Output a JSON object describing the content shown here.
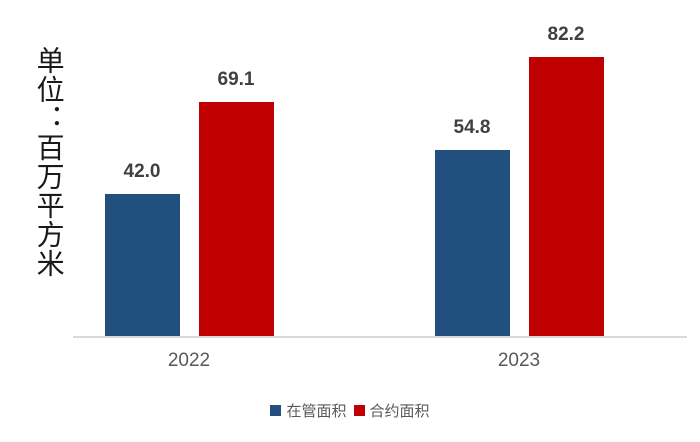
{
  "chart_data": {
    "type": "bar",
    "title": "",
    "unit_label": "单位：百万平方米",
    "categories": [
      "2022",
      "2023"
    ],
    "series": [
      {
        "key": "managed-area",
        "name": "在管面积",
        "color": "#21507e",
        "values": [
          42.0,
          54.8
        ]
      },
      {
        "key": "contracted-area",
        "name": "合约面积",
        "color": "#c00000",
        "values": [
          69.1,
          82.2
        ]
      }
    ],
    "value_label_format": "one-decimal",
    "legend_position": "bottom",
    "grid": false,
    "axis_line_color": "#d9d9d9",
    "value_label_color": "#404040",
    "category_label_color": "#595959",
    "unit_label_color": "#1a1a1a"
  }
}
